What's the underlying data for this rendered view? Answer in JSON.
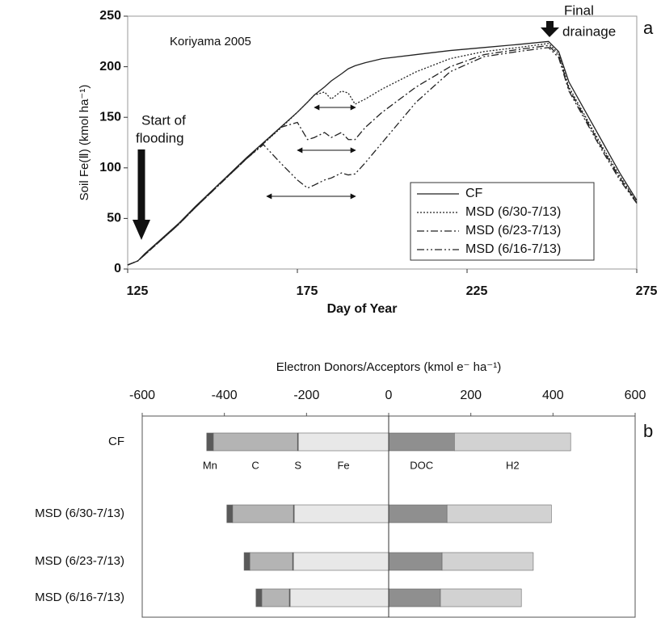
{
  "chart_data": [
    {
      "type": "line",
      "annotations": [
        "Koriyama 2005",
        "Start of",
        "flooding",
        "Final",
        "drainage",
        "a"
      ],
      "x_label": "Day of Year",
      "y_label": "Soil Fe(Ⅱ) (kmol ha⁻¹)",
      "xlim": [
        125,
        275
      ],
      "xticks": [
        125,
        175,
        225,
        275
      ],
      "ylim": [
        0,
        250
      ],
      "yticks": [
        0,
        50,
        100,
        150,
        200,
        250
      ],
      "legend": "lower right",
      "x": [
        125,
        128,
        130,
        135,
        140,
        145,
        150,
        155,
        160,
        165,
        170,
        175,
        178,
        180,
        183,
        185,
        188,
        190,
        192,
        195,
        200,
        210,
        220,
        230,
        240,
        249,
        252,
        255,
        260,
        265,
        270,
        275
      ],
      "series": [
        {
          "name": "CF",
          "color": "#222222",
          "line_style": "solid",
          "values": [
            4,
            8,
            15,
            30,
            45,
            62,
            78,
            94,
            110,
            125,
            140,
            155,
            165,
            172,
            180,
            186,
            193,
            198,
            201,
            204,
            208,
            212,
            216,
            219,
            222,
            225,
            215,
            185,
            155,
            125,
            95,
            68
          ]
        },
        {
          "name": "MSD (6/30-7/13)",
          "color": "#222222",
          "line_style": "dotted",
          "values": [
            4,
            8,
            14,
            29,
            44,
            61,
            77,
            93,
            109,
            124,
            139,
            155,
            165,
            172,
            175,
            168,
            176,
            174,
            163,
            168,
            178,
            195,
            208,
            215,
            219,
            223,
            213,
            180,
            150,
            120,
            92,
            66
          ]
        },
        {
          "name": "MSD (6/23-7/13)",
          "color": "#222222",
          "line_style": "dashdot",
          "values": [
            4,
            8,
            14,
            29,
            44,
            61,
            77,
            93,
            109,
            124,
            140,
            145,
            128,
            130,
            135,
            130,
            135,
            128,
            128,
            140,
            155,
            180,
            200,
            212,
            217,
            221,
            211,
            178,
            148,
            118,
            90,
            66
          ]
        },
        {
          "name": "MSD (6/16-7/13)",
          "color": "#222222",
          "line_style": "dashdotdot",
          "values": [
            4,
            8,
            14,
            29,
            44,
            61,
            77,
            93,
            109,
            123,
            105,
            88,
            80,
            83,
            88,
            90,
            95,
            93,
            94,
            105,
            125,
            165,
            195,
            210,
            215,
            219,
            209,
            176,
            146,
            116,
            88,
            65
          ]
        }
      ]
    },
    {
      "type": "stacked-barh",
      "title": "Electron Donors/Acceptors (kmol e⁻ ha⁻¹)",
      "annotations": [
        "b"
      ],
      "xlim": [
        -600,
        600
      ],
      "xticks": [
        -600,
        -400,
        -200,
        0,
        200,
        400,
        600
      ],
      "categories": [
        "CF",
        "MSD (6/30-7/13)",
        "MSD (6/23-7/13)",
        "MSD (6/16-7/13)"
      ],
      "series": [
        {
          "name": "Mn",
          "color": "#5a5a5a",
          "values": [
            -16,
            -14,
            -14,
            -14
          ]
        },
        {
          "name": "C",
          "color": "#b4b4b4",
          "values": [
            -205,
            -148,
            -104,
            -67
          ]
        },
        {
          "name": "S",
          "color": "#444444",
          "values": [
            -2,
            -2,
            -2,
            -2
          ]
        },
        {
          "name": "Fe",
          "color": "#e8e8e8",
          "values": [
            -220,
            -230,
            -232,
            -240
          ]
        },
        {
          "name": "DOC",
          "color": "#8f8f8f",
          "values": [
            160,
            142,
            130,
            126
          ]
        },
        {
          "name": "H2",
          "color": "#d2d2d2",
          "values": [
            283,
            254,
            222,
            197
          ]
        }
      ]
    }
  ]
}
